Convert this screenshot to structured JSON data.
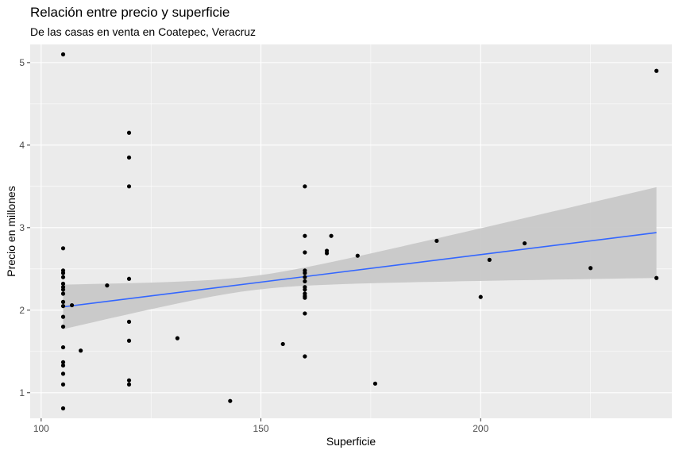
{
  "chart_data": {
    "type": "scatter",
    "title": "Relación entre precio y superficie",
    "subtitle": "De las casas en venta en Coatepec, Veracruz",
    "xlabel": "Superficie",
    "ylabel": "Precio en millones",
    "xlim": [
      97.5,
      243.5
    ],
    "ylim": [
      0.69,
      5.22
    ],
    "x_ticks": [
      100,
      150,
      200
    ],
    "y_ticks": [
      1,
      2,
      3,
      4,
      5
    ],
    "grid": true,
    "background": "#ebebeb",
    "grid_color": "#ffffff",
    "point_color": "#000000",
    "trend": {
      "method": "lm",
      "color": "#3366ff",
      "ribbon_color": "#c8c8c8",
      "x": [
        105,
        240
      ],
      "y": [
        2.04,
        2.94
      ],
      "lower": [
        1.77,
        2.4
      ],
      "upper": [
        2.31,
        3.49
      ]
    },
    "points": [
      {
        "x": 105,
        "y": 5.1
      },
      {
        "x": 105,
        "y": 2.75
      },
      {
        "x": 105,
        "y": 2.48
      },
      {
        "x": 105,
        "y": 2.45
      },
      {
        "x": 105,
        "y": 2.4
      },
      {
        "x": 105,
        "y": 2.32
      },
      {
        "x": 105,
        "y": 2.28
      },
      {
        "x": 105,
        "y": 2.25
      },
      {
        "x": 105,
        "y": 2.2
      },
      {
        "x": 105,
        "y": 2.1
      },
      {
        "x": 105,
        "y": 2.05
      },
      {
        "x": 105,
        "y": 1.92
      },
      {
        "x": 105,
        "y": 1.8
      },
      {
        "x": 105,
        "y": 1.55
      },
      {
        "x": 105,
        "y": 1.37
      },
      {
        "x": 105,
        "y": 1.33
      },
      {
        "x": 105,
        "y": 1.23
      },
      {
        "x": 105,
        "y": 1.1
      },
      {
        "x": 105,
        "y": 0.81
      },
      {
        "x": 107,
        "y": 2.06
      },
      {
        "x": 109,
        "y": 1.51
      },
      {
        "x": 115,
        "y": 2.3
      },
      {
        "x": 120,
        "y": 4.15
      },
      {
        "x": 120,
        "y": 3.85
      },
      {
        "x": 120,
        "y": 3.5
      },
      {
        "x": 120,
        "y": 2.38
      },
      {
        "x": 120,
        "y": 1.86
      },
      {
        "x": 120,
        "y": 1.63
      },
      {
        "x": 120,
        "y": 1.15
      },
      {
        "x": 120,
        "y": 1.1
      },
      {
        "x": 131,
        "y": 1.66
      },
      {
        "x": 143,
        "y": 0.9
      },
      {
        "x": 155,
        "y": 1.59
      },
      {
        "x": 160,
        "y": 3.5
      },
      {
        "x": 160,
        "y": 2.9
      },
      {
        "x": 160,
        "y": 2.7
      },
      {
        "x": 160,
        "y": 2.48
      },
      {
        "x": 160,
        "y": 2.45
      },
      {
        "x": 160,
        "y": 2.4
      },
      {
        "x": 160,
        "y": 2.35
      },
      {
        "x": 160,
        "y": 2.28
      },
      {
        "x": 160,
        "y": 2.25
      },
      {
        "x": 160,
        "y": 2.2
      },
      {
        "x": 160,
        "y": 2.17
      },
      {
        "x": 160,
        "y": 2.15
      },
      {
        "x": 160,
        "y": 1.96
      },
      {
        "x": 160,
        "y": 1.44
      },
      {
        "x": 165,
        "y": 2.72
      },
      {
        "x": 165,
        "y": 2.69
      },
      {
        "x": 166,
        "y": 2.9
      },
      {
        "x": 172,
        "y": 2.66
      },
      {
        "x": 176,
        "y": 1.11
      },
      {
        "x": 190,
        "y": 2.84
      },
      {
        "x": 200,
        "y": 2.16
      },
      {
        "x": 202,
        "y": 2.61
      },
      {
        "x": 210,
        "y": 2.81
      },
      {
        "x": 225,
        "y": 2.51
      },
      {
        "x": 240,
        "y": 4.9
      },
      {
        "x": 240,
        "y": 2.39
      }
    ]
  }
}
